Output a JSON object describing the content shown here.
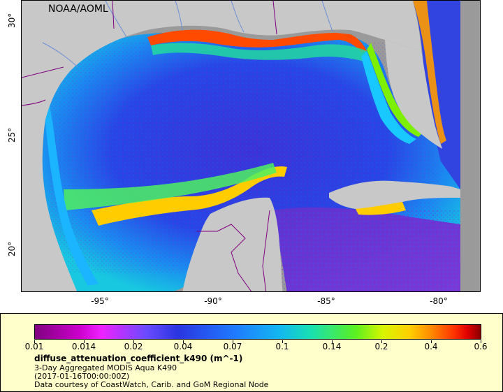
{
  "map": {
    "credit": "NOAA/AOML",
    "lat_ticks": [
      "30°",
      "25°",
      "20°"
    ],
    "lon_ticks": [
      "-95°",
      "-90°",
      "-85°",
      "-80°"
    ],
    "lat_range": [
      18.2,
      30.9
    ],
    "lon_range": [
      -98.4,
      -78.0
    ],
    "colors": {
      "land": "#c8c8c8",
      "no_data": "#9a9a9a",
      "border": "#800080",
      "river": "#6a8fd8"
    }
  },
  "legend": {
    "ticks": [
      "0.01",
      "0.014",
      "0.02",
      "0.04",
      "0.07",
      "0.1",
      "0.14",
      "0.2",
      "0.4",
      "0.6"
    ],
    "variable": "diffuse_attenuation_coefficient_k490 (m^-1)",
    "line1": "3-Day Aggregated MODIS Aqua K490",
    "line2": "(2017-01-16T00:00:00Z)",
    "line3": "Data courtesy of CoastWatch, Carib. and GoM Regional Node"
  }
}
